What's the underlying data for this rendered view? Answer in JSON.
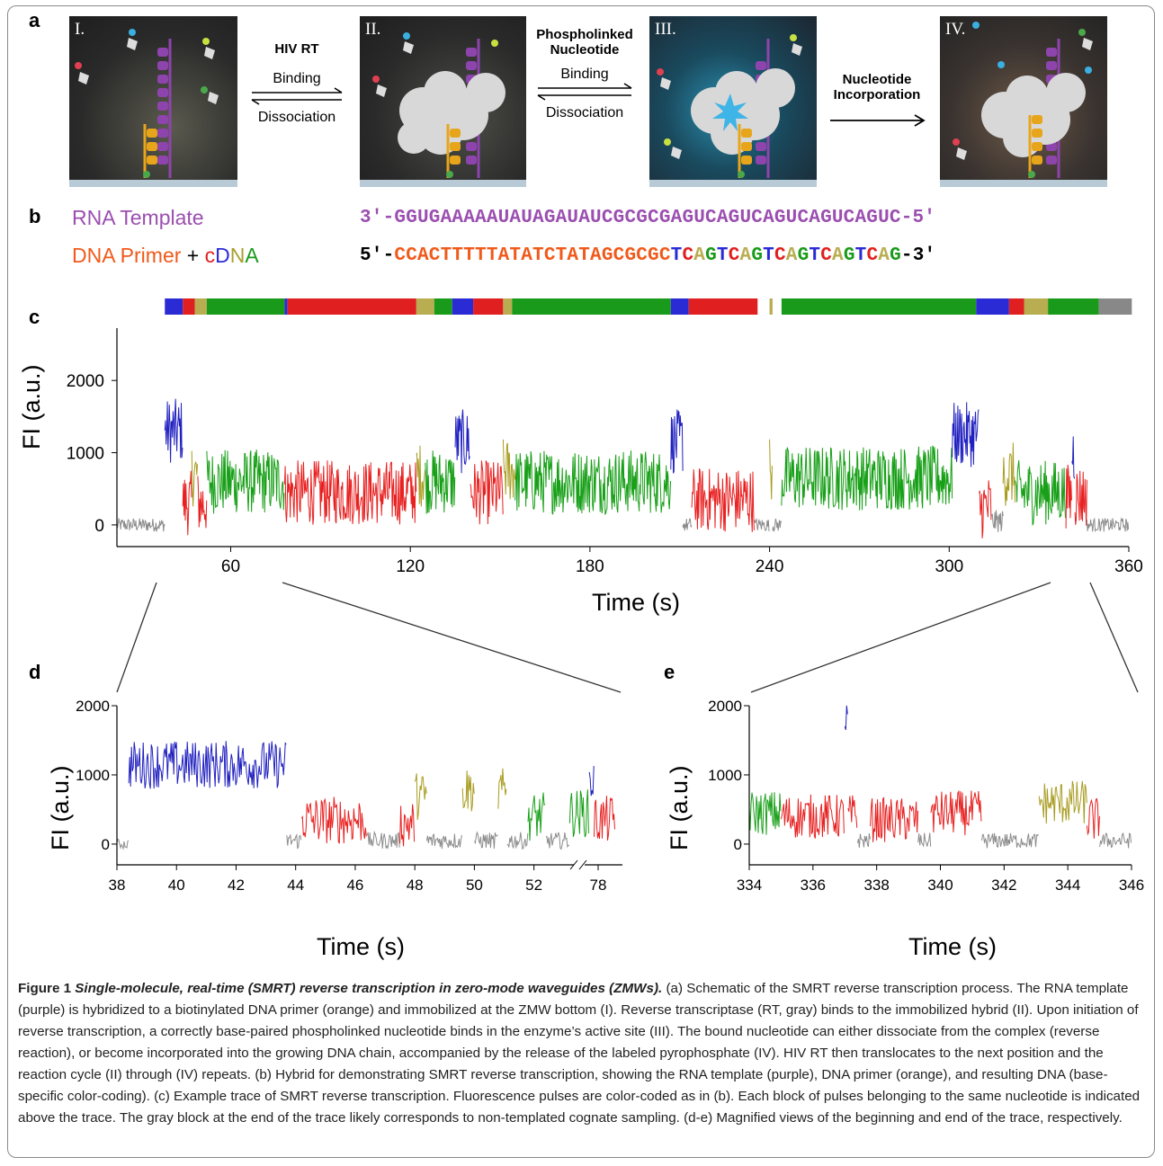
{
  "panel_labels": {
    "a": "a",
    "b": "b",
    "c": "c",
    "d": "d",
    "e": "e"
  },
  "schematic": {
    "stages": [
      "I.",
      "II.",
      "III.",
      "IV."
    ],
    "step1": {
      "title": "HIV RT",
      "fwd": "Binding",
      "rev": "Dissociation"
    },
    "step2": {
      "title_line1": "Phospholinked",
      "title_line2": "Nucleotide",
      "fwd": "Binding",
      "rev": "Dissociation"
    },
    "step3": {
      "title_line1": "Nucleotide",
      "title_line2": "Incorporation"
    },
    "colors": {
      "template": "#8e44ad",
      "primer": "#e7a51b",
      "enzyme": "#cfcfcf",
      "blue": "#2b2bd6",
      "red": "#e02020",
      "green": "#1a9a1a",
      "olive": "#a8a030"
    }
  },
  "sequence": {
    "rna_label": "RNA Template",
    "dna_label_primer": "DNA Primer",
    "dna_label_plus": " + ",
    "dna_label_c": "c",
    "dna_label_D": "D",
    "dna_label_N": "N",
    "dna_label_A": "A",
    "rna_seq": "3′-GGUGAAAAAUAUAGAUAUCGCGCGAGUCAGUCAGUCAGUCAGUC-5′",
    "dna_prefix": "5′-",
    "dna_primer": "CCACTTTTTATATCTATAGCGCGC",
    "dna_cdna": [
      "T",
      "C",
      "A",
      "G",
      "T",
      "C",
      "A",
      "G",
      "T",
      "C",
      "A",
      "G",
      "T",
      "C",
      "A",
      "G",
      "T",
      "C",
      "A",
      "G"
    ],
    "dna_suffix": "-3′"
  },
  "chart_data": [
    {
      "type": "line",
      "panel": "c",
      "xlabel": "Time (s)",
      "ylabel": "FI (a.u.)",
      "xlim": [
        22,
        360
      ],
      "ylim": [
        -300,
        2600
      ],
      "xticks": [
        60,
        120,
        180,
        240,
        300,
        360
      ],
      "yticks": [
        0,
        1000,
        2000
      ],
      "base_blocks": [
        {
          "base": "T",
          "x0": 38,
          "x1": 44
        },
        {
          "base": "C",
          "x0": 44,
          "x1": 48
        },
        {
          "base": "A",
          "x0": 48,
          "x1": 52
        },
        {
          "base": "G",
          "x0": 52,
          "x1": 78
        },
        {
          "base": "T",
          "x0": 78,
          "x1": 79
        },
        {
          "base": "C",
          "x0": 79,
          "x1": 122
        },
        {
          "base": "A",
          "x0": 122,
          "x1": 128
        },
        {
          "base": "G",
          "x0": 128,
          "x1": 134
        },
        {
          "base": "T",
          "x0": 134,
          "x1": 141
        },
        {
          "base": "C",
          "x0": 141,
          "x1": 151
        },
        {
          "base": "A",
          "x0": 151,
          "x1": 154
        },
        {
          "base": "G",
          "x0": 154,
          "x1": 207
        },
        {
          "base": "T",
          "x0": 207,
          "x1": 213
        },
        {
          "base": "C",
          "x0": 213,
          "x1": 236
        },
        {
          "base": "A",
          "x0": 240,
          "x1": 241
        },
        {
          "base": "G",
          "x0": 244,
          "x1": 309
        },
        {
          "base": "T",
          "x0": 309,
          "x1": 320
        },
        {
          "base": "C",
          "x0": 320,
          "x1": 325
        },
        {
          "base": "A",
          "x0": 325,
          "x1": 333
        },
        {
          "base": "G",
          "x0": 333,
          "x1": 350
        },
        {
          "base": "",
          "x0": 350,
          "x1": 361
        }
      ],
      "segments": [
        {
          "x0": 22,
          "x1": 38,
          "color": "gray",
          "level": 0
        },
        {
          "x0": 38,
          "x1": 44,
          "color": "blue",
          "level": 1300
        },
        {
          "x0": 44,
          "x1": 47,
          "color": "red",
          "level": 300
        },
        {
          "x0": 47,
          "x1": 49,
          "color": "olive",
          "level": 700
        },
        {
          "x0": 49,
          "x1": 52,
          "color": "red",
          "level": 300
        },
        {
          "x0": 52,
          "x1": 78,
          "color": "green",
          "level": 600
        },
        {
          "x0": 78,
          "x1": 122,
          "color": "red",
          "level": 450
        },
        {
          "x0": 122,
          "x1": 125,
          "color": "olive",
          "level": 700
        },
        {
          "x0": 125,
          "x1": 135,
          "color": "green",
          "level": 600
        },
        {
          "x0": 135,
          "x1": 140,
          "color": "blue",
          "level": 1150
        },
        {
          "x0": 140,
          "x1": 151,
          "color": "red",
          "level": 450
        },
        {
          "x0": 151,
          "x1": 155,
          "color": "olive",
          "level": 750
        },
        {
          "x0": 155,
          "x1": 207,
          "color": "green",
          "level": 600
        },
        {
          "x0": 207,
          "x1": 211,
          "color": "blue",
          "level": 1150
        },
        {
          "x0": 211,
          "x1": 214,
          "color": "gray",
          "level": 0
        },
        {
          "x0": 214,
          "x1": 235,
          "color": "red",
          "level": 350
        },
        {
          "x0": 235,
          "x1": 240,
          "color": "gray",
          "level": 0
        },
        {
          "x0": 240,
          "x1": 241,
          "color": "olive",
          "level": 800
        },
        {
          "x0": 241,
          "x1": 244,
          "color": "gray",
          "level": 0
        },
        {
          "x0": 244,
          "x1": 301,
          "color": "green",
          "level": 650
        },
        {
          "x0": 301,
          "x1": 310,
          "color": "blue",
          "level": 1250
        },
        {
          "x0": 310,
          "x1": 314,
          "color": "red",
          "level": 250
        },
        {
          "x0": 314,
          "x1": 318,
          "color": "gray",
          "level": 50
        },
        {
          "x0": 318,
          "x1": 322,
          "color": "olive",
          "level": 700
        },
        {
          "x0": 322,
          "x1": 339,
          "color": "green",
          "level": 450
        },
        {
          "x0": 339,
          "x1": 341,
          "color": "red",
          "level": 400
        },
        {
          "x0": 341,
          "x1": 342,
          "color": "blue",
          "level": 1000
        },
        {
          "x0": 342,
          "x1": 346,
          "color": "red",
          "level": 400
        },
        {
          "x0": 346,
          "x1": 360,
          "color": "gray",
          "level": 0
        }
      ],
      "zoom_regions": [
        {
          "x0": 38,
          "x1": 78
        },
        {
          "x0": 334,
          "x1": 346
        }
      ]
    },
    {
      "type": "line",
      "panel": "d",
      "xlabel": "Time (s)",
      "ylabel": "FI (a.u.)",
      "xticks": [
        "38",
        "40",
        "42",
        "44",
        "46",
        "48",
        "50",
        "52",
        "78"
      ],
      "yticks": [
        0,
        1000,
        2000
      ],
      "ylim": [
        -300,
        2000
      ],
      "segments": [
        {
          "x0": 38,
          "x1": 38.4,
          "color": "gray",
          "level": 0
        },
        {
          "x0": 38.4,
          "x1": 43.7,
          "color": "blue",
          "level": 1150
        },
        {
          "x0": 43.7,
          "x1": 44.2,
          "color": "gray",
          "level": 50
        },
        {
          "x0": 44.2,
          "x1": 46.4,
          "color": "red",
          "level": 350
        },
        {
          "x0": 46.4,
          "x1": 47.5,
          "color": "gray",
          "level": 50
        },
        {
          "x0": 47.5,
          "x1": 48,
          "color": "red",
          "level": 300
        },
        {
          "x0": 48,
          "x1": 48.4,
          "color": "olive",
          "level": 700
        },
        {
          "x0": 48.4,
          "x1": 49.6,
          "color": "gray",
          "level": 50
        },
        {
          "x0": 49.6,
          "x1": 50,
          "color": "olive",
          "level": 800
        },
        {
          "x0": 50,
          "x1": 50.8,
          "color": "gray",
          "level": 50
        },
        {
          "x0": 50.8,
          "x1": 51.1,
          "color": "olive",
          "level": 750
        },
        {
          "x0": 51.1,
          "x1": 51.8,
          "color": "gray",
          "level": 50
        },
        {
          "x0": 51.8,
          "x1": 52.4,
          "color": "green",
          "level": 400
        },
        {
          "x0": 52.4,
          "x1": 53.2,
          "color": "gray",
          "level": 50
        },
        {
          "x0": 53.2,
          "x1": 53.9,
          "color": "green",
          "level": 450
        },
        {
          "x0": 53.9,
          "x1": 54.1,
          "color": "blue",
          "level": 900
        },
        {
          "x0": 54.1,
          "x1": 55,
          "color": "red",
          "level": 350
        }
      ]
    },
    {
      "type": "line",
      "panel": "e",
      "xlabel": "Time (s)",
      "ylabel": "FI (a.u.)",
      "xlim": [
        334,
        346
      ],
      "ylim": [
        -300,
        2000
      ],
      "xticks": [
        334,
        336,
        338,
        340,
        342,
        344,
        346
      ],
      "yticks": [
        0,
        1000,
        2000
      ],
      "segments": [
        {
          "x0": 334,
          "x1": 335,
          "color": "green",
          "level": 450
        },
        {
          "x0": 335,
          "x1": 337,
          "color": "red",
          "level": 400
        },
        {
          "x0": 337,
          "x1": 337.1,
          "color": "blue",
          "level": 1750
        },
        {
          "x0": 337.1,
          "x1": 337.4,
          "color": "red",
          "level": 400
        },
        {
          "x0": 337.4,
          "x1": 337.8,
          "color": "gray",
          "level": 50
        },
        {
          "x0": 337.8,
          "x1": 339.3,
          "color": "red",
          "level": 350
        },
        {
          "x0": 339.3,
          "x1": 339.7,
          "color": "gray",
          "level": 50
        },
        {
          "x0": 339.7,
          "x1": 341.3,
          "color": "red",
          "level": 450
        },
        {
          "x0": 341.3,
          "x1": 343.1,
          "color": "gray",
          "level": 50
        },
        {
          "x0": 343.1,
          "x1": 344.6,
          "color": "olive",
          "level": 600
        },
        {
          "x0": 344.6,
          "x1": 345,
          "color": "red",
          "level": 350
        },
        {
          "x0": 345,
          "x1": 346,
          "color": "gray",
          "level": 50
        }
      ]
    }
  ],
  "caption": {
    "title": "Figure 1 ",
    "title_italic": "Single-molecule, real-time (SMRT) reverse transcription in zero-mode waveguides (ZMWs).",
    "body": "(a) Schematic of the SMRT reverse transcription process. The RNA template (purple) is hybridized to a biotinylated DNA primer (orange) and immobilized at the ZMW bottom (I). Reverse transcriptase (RT, gray) binds to the immobilized hybrid (II). Upon initiation of reverse transcription, a correctly base-paired phospholinked nucleotide binds in the enzyme’s active site (III). The bound nucleotide can either dissociate from the complex (reverse reaction), or become incorporated into the growing DNA chain, accompanied by the release of the labeled pyrophosphate (IV). HIV RT then translocates to the next position and the reaction cycle (II) through (IV) repeats. (b) Hybrid for demonstrating SMRT reverse transcription, showing the RNA template (purple), DNA primer (orange), and resulting DNA (base-specific color-coding). (c) Example trace of SMRT reverse transcription. Fluorescence pulses are color-coded as in (b). Each block of pulses belonging to the same nucleotide is indicated above the trace. The gray block at the end of the trace likely corresponds to non-templated cognate sampling. (d-e) Magnified views of the beginning and end of the trace, respectively."
  }
}
